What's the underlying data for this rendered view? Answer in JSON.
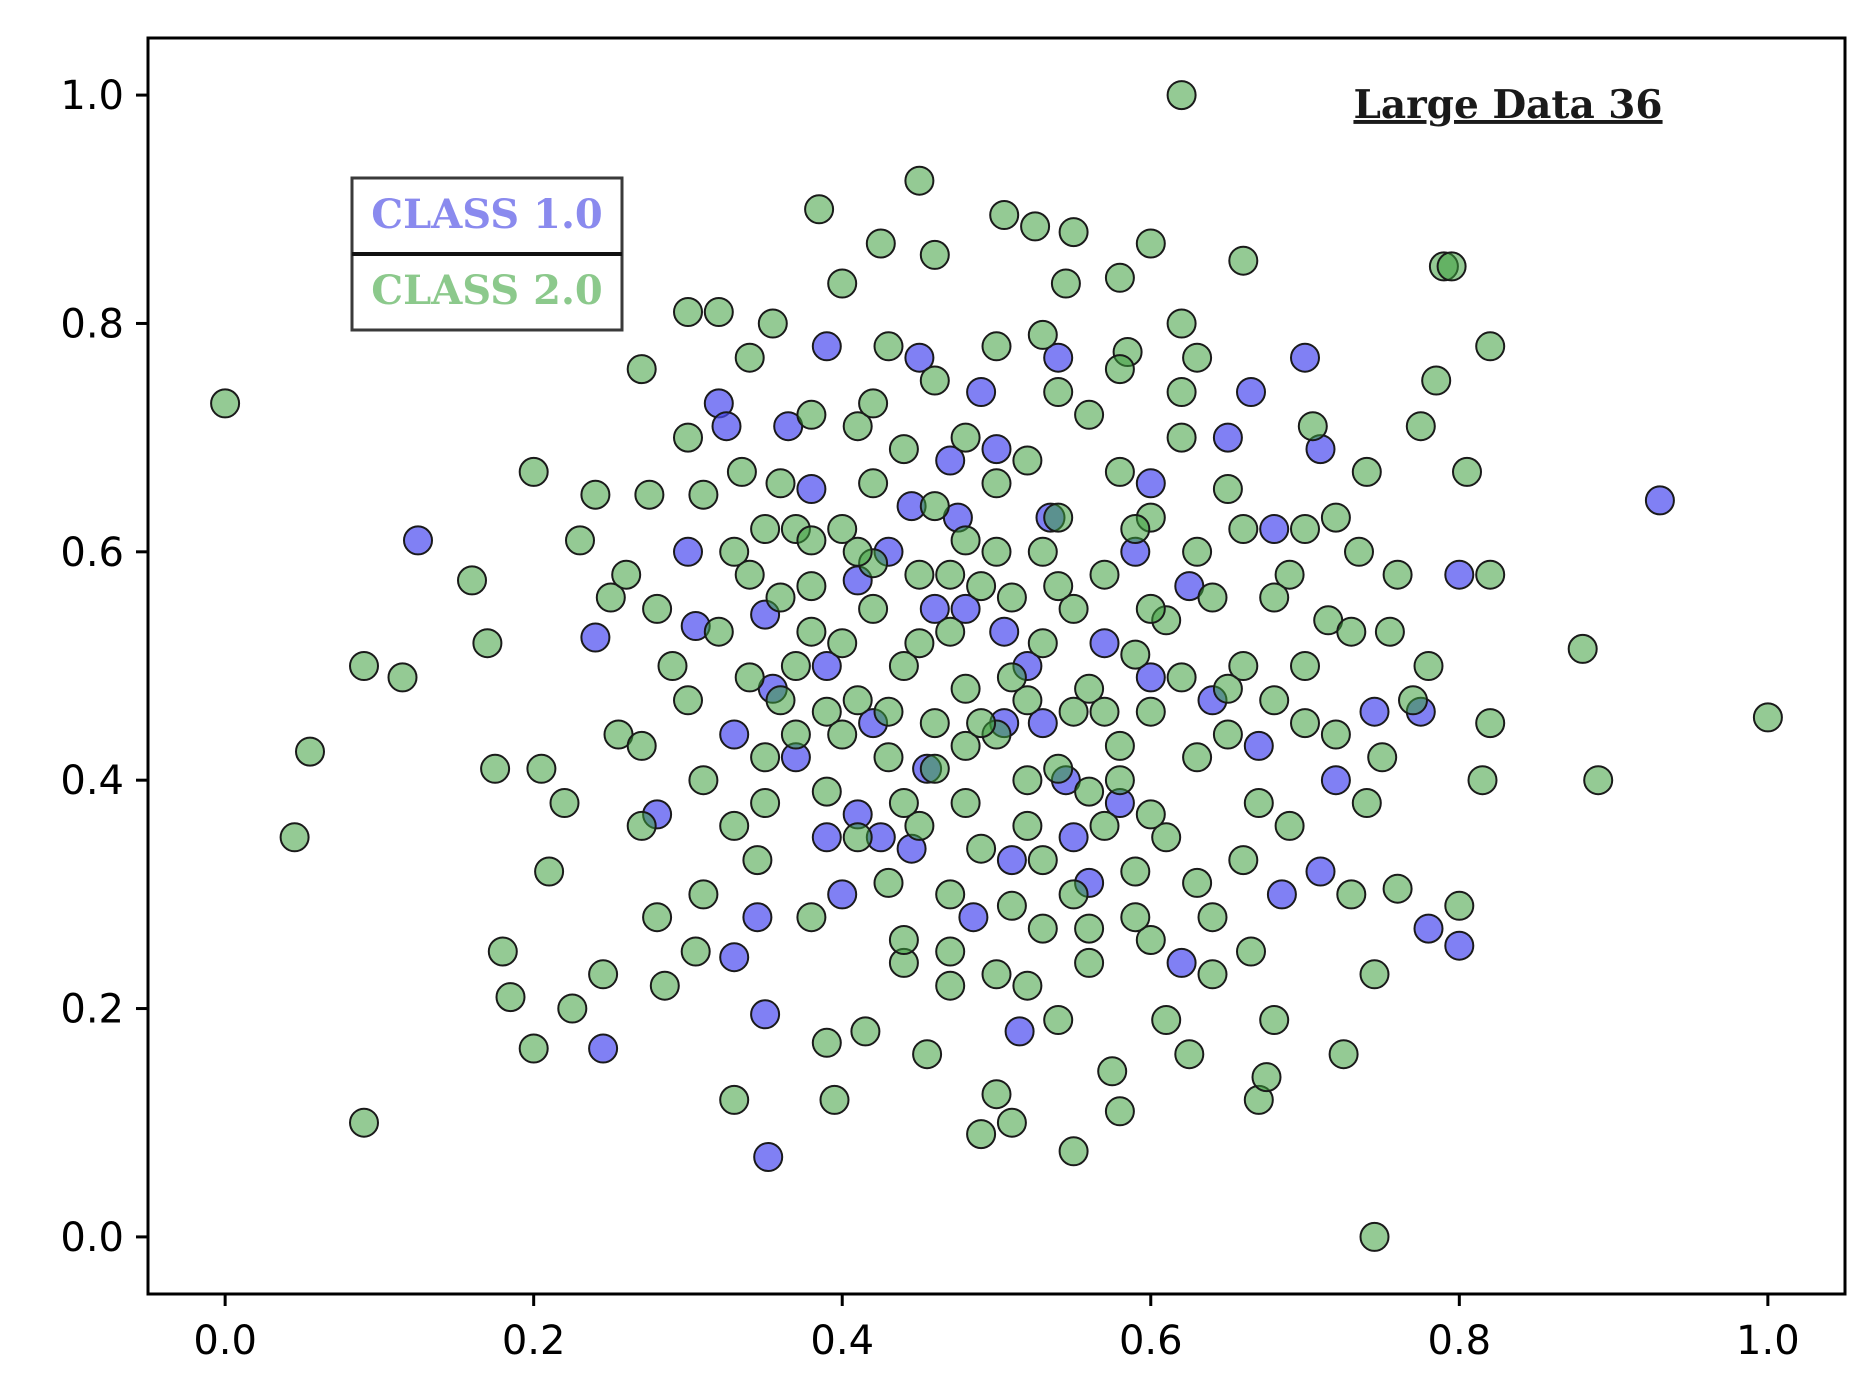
{
  "chart_data": {
    "type": "scatter",
    "title": "Large Data 36",
    "xlabel": "",
    "ylabel": "",
    "xlim": [
      -0.05,
      1.05
    ],
    "ylim": [
      -0.05,
      1.05
    ],
    "x_ticks": [
      "0.0",
      "0.2",
      "0.4",
      "0.6",
      "0.8",
      "1.0"
    ],
    "y_ticks": [
      "0.0",
      "0.2",
      "0.4",
      "0.6",
      "0.8",
      "1.0"
    ],
    "grid": false,
    "legend_position": "upper-left",
    "series": [
      {
        "name": "CLASS 1.0",
        "color": "#4a4af0",
        "points": [
          [
            0.125,
            0.61
          ],
          [
            0.245,
            0.165
          ],
          [
            0.3,
            0.6
          ],
          [
            0.32,
            0.73
          ],
          [
            0.325,
            0.71
          ],
          [
            0.33,
            0.245
          ],
          [
            0.345,
            0.28
          ],
          [
            0.35,
            0.195
          ],
          [
            0.352,
            0.07
          ],
          [
            0.355,
            0.48
          ],
          [
            0.365,
            0.71
          ],
          [
            0.38,
            0.655
          ],
          [
            0.39,
            0.78
          ],
          [
            0.4,
            0.3
          ],
          [
            0.41,
            0.37
          ],
          [
            0.42,
            0.45
          ],
          [
            0.43,
            0.6
          ],
          [
            0.445,
            0.34
          ],
          [
            0.45,
            0.77
          ],
          [
            0.46,
            0.55
          ],
          [
            0.47,
            0.68
          ],
          [
            0.48,
            0.55
          ],
          [
            0.485,
            0.28
          ],
          [
            0.49,
            0.74
          ],
          [
            0.5,
            0.69
          ],
          [
            0.505,
            0.53
          ],
          [
            0.51,
            0.33
          ],
          [
            0.515,
            0.18
          ],
          [
            0.52,
            0.5
          ],
          [
            0.53,
            0.45
          ],
          [
            0.54,
            0.77
          ],
          [
            0.55,
            0.35
          ],
          [
            0.56,
            0.31
          ],
          [
            0.58,
            0.38
          ],
          [
            0.59,
            0.6
          ],
          [
            0.6,
            0.66
          ],
          [
            0.62,
            0.24
          ],
          [
            0.625,
            0.57
          ],
          [
            0.64,
            0.47
          ],
          [
            0.65,
            0.7
          ],
          [
            0.665,
            0.74
          ],
          [
            0.67,
            0.43
          ],
          [
            0.68,
            0.62
          ],
          [
            0.685,
            0.3
          ],
          [
            0.7,
            0.77
          ],
          [
            0.71,
            0.32
          ],
          [
            0.71,
            0.69
          ],
          [
            0.72,
            0.4
          ],
          [
            0.745,
            0.46
          ],
          [
            0.775,
            0.46
          ],
          [
            0.78,
            0.27
          ],
          [
            0.8,
            0.58
          ],
          [
            0.8,
            0.255
          ],
          [
            0.93,
            0.645
          ],
          [
            0.28,
            0.37
          ],
          [
            0.305,
            0.535
          ],
          [
            0.37,
            0.42
          ],
          [
            0.425,
            0.35
          ],
          [
            0.455,
            0.41
          ],
          [
            0.505,
            0.45
          ],
          [
            0.545,
            0.4
          ],
          [
            0.57,
            0.52
          ],
          [
            0.41,
            0.575
          ],
          [
            0.475,
            0.63
          ],
          [
            0.535,
            0.63
          ],
          [
            0.6,
            0.49
          ],
          [
            0.35,
            0.545
          ],
          [
            0.33,
            0.44
          ],
          [
            0.39,
            0.35
          ],
          [
            0.445,
            0.64
          ],
          [
            0.24,
            0.525
          ],
          [
            0.39,
            0.5
          ]
        ]
      },
      {
        "name": "CLASS 2.0",
        "color": "#3d9e3d",
        "points": [
          [
            0.0,
            0.73
          ],
          [
            0.045,
            0.35
          ],
          [
            0.055,
            0.425
          ],
          [
            0.09,
            0.1
          ],
          [
            0.09,
            0.5
          ],
          [
            0.115,
            0.49
          ],
          [
            0.16,
            0.575
          ],
          [
            0.17,
            0.52
          ],
          [
            0.175,
            0.41
          ],
          [
            0.18,
            0.25
          ],
          [
            0.185,
            0.21
          ],
          [
            0.2,
            0.67
          ],
          [
            0.2,
            0.165
          ],
          [
            0.205,
            0.41
          ],
          [
            0.21,
            0.32
          ],
          [
            0.22,
            0.38
          ],
          [
            0.225,
            0.2
          ],
          [
            0.23,
            0.61
          ],
          [
            0.24,
            0.65
          ],
          [
            0.245,
            0.23
          ],
          [
            0.25,
            0.56
          ],
          [
            0.255,
            0.44
          ],
          [
            0.27,
            0.76
          ],
          [
            0.275,
            0.65
          ],
          [
            0.28,
            0.28
          ],
          [
            0.285,
            0.22
          ],
          [
            0.29,
            0.5
          ],
          [
            0.3,
            0.81
          ],
          [
            0.305,
            0.25
          ],
          [
            0.31,
            0.4
          ],
          [
            0.32,
            0.81
          ],
          [
            0.33,
            0.12
          ],
          [
            0.335,
            0.67
          ],
          [
            0.34,
            0.77
          ],
          [
            0.345,
            0.33
          ],
          [
            0.355,
            0.8
          ],
          [
            0.36,
            0.47
          ],
          [
            0.37,
            0.62
          ],
          [
            0.38,
            0.28
          ],
          [
            0.385,
            0.9
          ],
          [
            0.39,
            0.17
          ],
          [
            0.395,
            0.12
          ],
          [
            0.4,
            0.835
          ],
          [
            0.41,
            0.71
          ],
          [
            0.415,
            0.18
          ],
          [
            0.425,
            0.87
          ],
          [
            0.43,
            0.78
          ],
          [
            0.44,
            0.24
          ],
          [
            0.45,
            0.925
          ],
          [
            0.455,
            0.16
          ],
          [
            0.46,
            0.86
          ],
          [
            0.47,
            0.22
          ],
          [
            0.48,
            0.43
          ],
          [
            0.49,
            0.09
          ],
          [
            0.5,
            0.125
          ],
          [
            0.505,
            0.895
          ],
          [
            0.51,
            0.1
          ],
          [
            0.52,
            0.22
          ],
          [
            0.525,
            0.885
          ],
          [
            0.53,
            0.79
          ],
          [
            0.54,
            0.19
          ],
          [
            0.545,
            0.835
          ],
          [
            0.55,
            0.88
          ],
          [
            0.55,
            0.075
          ],
          [
            0.56,
            0.27
          ],
          [
            0.575,
            0.145
          ],
          [
            0.58,
            0.84
          ],
          [
            0.58,
            0.11
          ],
          [
            0.585,
            0.775
          ],
          [
            0.6,
            0.87
          ],
          [
            0.6,
            0.26
          ],
          [
            0.61,
            0.19
          ],
          [
            0.62,
            0.8
          ],
          [
            0.625,
            0.16
          ],
          [
            0.63,
            0.77
          ],
          [
            0.64,
            0.23
          ],
          [
            0.65,
            0.655
          ],
          [
            0.66,
            0.855
          ],
          [
            0.665,
            0.25
          ],
          [
            0.67,
            0.12
          ],
          [
            0.675,
            0.14
          ],
          [
            0.68,
            0.19
          ],
          [
            0.69,
            0.58
          ],
          [
            0.7,
            0.45
          ],
          [
            0.705,
            0.71
          ],
          [
            0.715,
            0.54
          ],
          [
            0.725,
            0.16
          ],
          [
            0.73,
            0.3
          ],
          [
            0.735,
            0.6
          ],
          [
            0.745,
            0.23
          ],
          [
            0.745,
            0.0
          ],
          [
            0.755,
            0.53
          ],
          [
            0.76,
            0.305
          ],
          [
            0.77,
            0.47
          ],
          [
            0.775,
            0.71
          ],
          [
            0.78,
            0.5
          ],
          [
            0.785,
            0.75
          ],
          [
            0.79,
            0.85
          ],
          [
            0.795,
            0.85
          ],
          [
            0.8,
            0.29
          ],
          [
            0.805,
            0.67
          ],
          [
            0.815,
            0.4
          ],
          [
            0.82,
            0.58
          ],
          [
            0.82,
            0.78
          ],
          [
            0.82,
            0.45
          ],
          [
            0.88,
            0.515
          ],
          [
            0.89,
            0.4
          ],
          [
            1.0,
            0.455
          ],
          [
            0.62,
            1.0
          ],
          [
            0.27,
            0.43
          ],
          [
            0.28,
            0.55
          ],
          [
            0.3,
            0.47
          ],
          [
            0.31,
            0.65
          ],
          [
            0.32,
            0.53
          ],
          [
            0.33,
            0.6
          ],
          [
            0.34,
            0.49
          ],
          [
            0.35,
            0.38
          ],
          [
            0.36,
            0.56
          ],
          [
            0.37,
            0.44
          ],
          [
            0.38,
            0.61
          ],
          [
            0.39,
            0.39
          ],
          [
            0.4,
            0.52
          ],
          [
            0.41,
            0.47
          ],
          [
            0.42,
            0.55
          ],
          [
            0.43,
            0.42
          ],
          [
            0.44,
            0.5
          ],
          [
            0.45,
            0.58
          ],
          [
            0.46,
            0.45
          ],
          [
            0.47,
            0.53
          ],
          [
            0.48,
            0.48
          ],
          [
            0.49,
            0.57
          ],
          [
            0.5,
            0.44
          ],
          [
            0.51,
            0.56
          ],
          [
            0.52,
            0.47
          ],
          [
            0.53,
            0.52
          ],
          [
            0.54,
            0.41
          ],
          [
            0.55,
            0.55
          ],
          [
            0.56,
            0.48
          ],
          [
            0.57,
            0.58
          ],
          [
            0.58,
            0.43
          ],
          [
            0.59,
            0.51
          ],
          [
            0.6,
            0.46
          ],
          [
            0.61,
            0.54
          ],
          [
            0.62,
            0.49
          ],
          [
            0.63,
            0.42
          ],
          [
            0.64,
            0.56
          ],
          [
            0.65,
            0.44
          ],
          [
            0.66,
            0.5
          ],
          [
            0.67,
            0.38
          ],
          [
            0.68,
            0.47
          ],
          [
            0.4,
            0.62
          ],
          [
            0.42,
            0.66
          ],
          [
            0.44,
            0.69
          ],
          [
            0.46,
            0.64
          ],
          [
            0.48,
            0.7
          ],
          [
            0.5,
            0.66
          ],
          [
            0.52,
            0.68
          ],
          [
            0.54,
            0.63
          ],
          [
            0.56,
            0.72
          ],
          [
            0.58,
            0.67
          ],
          [
            0.6,
            0.63
          ],
          [
            0.62,
            0.7
          ],
          [
            0.41,
            0.35
          ],
          [
            0.43,
            0.31
          ],
          [
            0.45,
            0.36
          ],
          [
            0.47,
            0.3
          ],
          [
            0.49,
            0.34
          ],
          [
            0.51,
            0.29
          ],
          [
            0.53,
            0.33
          ],
          [
            0.55,
            0.3
          ],
          [
            0.57,
            0.36
          ],
          [
            0.59,
            0.32
          ],
          [
            0.61,
            0.35
          ],
          [
            0.63,
            0.31
          ],
          [
            0.36,
            0.66
          ],
          [
            0.38,
            0.72
          ],
          [
            0.34,
            0.58
          ],
          [
            0.37,
            0.5
          ],
          [
            0.39,
            0.46
          ],
          [
            0.35,
            0.42
          ],
          [
            0.66,
            0.62
          ],
          [
            0.68,
            0.56
          ],
          [
            0.7,
            0.5
          ],
          [
            0.72,
            0.44
          ],
          [
            0.74,
            0.38
          ],
          [
            0.7,
            0.62
          ],
          [
            0.44,
            0.26
          ],
          [
            0.47,
            0.25
          ],
          [
            0.5,
            0.23
          ],
          [
            0.53,
            0.27
          ],
          [
            0.56,
            0.24
          ],
          [
            0.59,
            0.28
          ],
          [
            0.46,
            0.75
          ],
          [
            0.5,
            0.78
          ],
          [
            0.54,
            0.74
          ],
          [
            0.58,
            0.76
          ],
          [
            0.42,
            0.73
          ],
          [
            0.62,
            0.74
          ],
          [
            0.26,
            0.58
          ],
          [
            0.27,
            0.36
          ],
          [
            0.3,
            0.7
          ],
          [
            0.31,
            0.3
          ],
          [
            0.64,
            0.28
          ],
          [
            0.66,
            0.33
          ],
          [
            0.72,
            0.63
          ],
          [
            0.73,
            0.53
          ],
          [
            0.75,
            0.42
          ],
          [
            0.76,
            0.58
          ],
          [
            0.74,
            0.67
          ],
          [
            0.69,
            0.36
          ],
          [
            0.33,
            0.36
          ],
          [
            0.35,
            0.62
          ],
          [
            0.38,
            0.57
          ],
          [
            0.42,
            0.59
          ],
          [
            0.45,
            0.52
          ],
          [
            0.48,
            0.61
          ],
          [
            0.51,
            0.49
          ],
          [
            0.54,
            0.57
          ],
          [
            0.57,
            0.46
          ],
          [
            0.6,
            0.55
          ],
          [
            0.63,
            0.6
          ],
          [
            0.65,
            0.48
          ],
          [
            0.43,
            0.46
          ],
          [
            0.46,
            0.41
          ],
          [
            0.49,
            0.45
          ],
          [
            0.52,
            0.4
          ],
          [
            0.55,
            0.46
          ],
          [
            0.58,
            0.4
          ],
          [
            0.4,
            0.44
          ],
          [
            0.44,
            0.38
          ],
          [
            0.48,
            0.38
          ],
          [
            0.52,
            0.36
          ],
          [
            0.56,
            0.39
          ],
          [
            0.6,
            0.37
          ],
          [
            0.38,
            0.53
          ],
          [
            0.47,
            0.58
          ],
          [
            0.53,
            0.6
          ],
          [
            0.59,
            0.62
          ],
          [
            0.41,
            0.6
          ],
          [
            0.5,
            0.6
          ]
        ]
      }
    ]
  }
}
